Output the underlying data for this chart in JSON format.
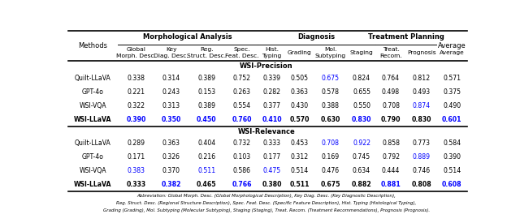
{
  "sub_headers": [
    "Global\nMorph. Desc.",
    "Key\nDiag. Desc.",
    "Reg.\nStruct. Desc.",
    "Spec.\nFeat. Desc.",
    "Hist.\nTyping",
    "Grading",
    "Mol.\nSubtyping",
    "Staging",
    "Treat.\nRecom.",
    "Prognosis",
    "Average"
  ],
  "section_precision": "WSI-Precision",
  "section_relevance": "WSI-Relevance",
  "precision_rows": [
    {
      "method": "Quilt-LLaVA",
      "bold": false,
      "values": [
        "0.338",
        "0.314",
        "0.389",
        "0.752",
        "0.339",
        "0.505",
        "0.675",
        "0.824",
        "0.764",
        "0.812",
        "0.571"
      ],
      "blue": [
        6
      ]
    },
    {
      "method": "GPT-4o",
      "bold": false,
      "values": [
        "0.221",
        "0.243",
        "0.153",
        "0.263",
        "0.282",
        "0.363",
        "0.578",
        "0.655",
        "0.498",
        "0.493",
        "0.375"
      ],
      "blue": []
    },
    {
      "method": "WSI-VQA",
      "bold": false,
      "values": [
        "0.322",
        "0.313",
        "0.389",
        "0.554",
        "0.377",
        "0.430",
        "0.388",
        "0.550",
        "0.708",
        "0.874",
        "0.490"
      ],
      "blue": [
        9
      ]
    },
    {
      "method": "WSI-LLaVA",
      "bold": true,
      "values": [
        "0.390",
        "0.350",
        "0.450",
        "0.760",
        "0.410",
        "0.570",
        "0.630",
        "0.830",
        "0.790",
        "0.830",
        "0.601"
      ],
      "blue": [
        0,
        1,
        2,
        3,
        4,
        7,
        10
      ]
    }
  ],
  "relevance_rows": [
    {
      "method": "Quilt-LLaVA",
      "bold": false,
      "values": [
        "0.289",
        "0.363",
        "0.404",
        "0.732",
        "0.333",
        "0.453",
        "0.708",
        "0.922",
        "0.858",
        "0.773",
        "0.584"
      ],
      "blue": [
        6,
        7
      ]
    },
    {
      "method": "GPT-4o",
      "bold": false,
      "values": [
        "0.171",
        "0.326",
        "0.216",
        "0.103",
        "0.177",
        "0.312",
        "0.169",
        "0.745",
        "0.792",
        "0.889",
        "0.390"
      ],
      "blue": [
        9
      ]
    },
    {
      "method": "WSI-VQA",
      "bold": false,
      "values": [
        "0.383",
        "0.370",
        "0.511",
        "0.586",
        "0.475",
        "0.514",
        "0.476",
        "0.634",
        "0.444",
        "0.746",
        "0.514"
      ],
      "blue": [
        0,
        2,
        4
      ]
    },
    {
      "method": "WSI-LLaVA",
      "bold": true,
      "values": [
        "0.333",
        "0.382",
        "0.465",
        "0.766",
        "0.380",
        "0.511",
        "0.675",
        "0.882",
        "0.881",
        "0.808",
        "0.608"
      ],
      "blue": [
        1,
        3,
        8,
        10
      ]
    }
  ],
  "footnote_lines": [
    "Abbreviation: Global Morph. Desc. (Global Morphological Description), Key Diag. Desc. (Key Diagnostic Description),",
    "Reg. Struct. Desc. (Regional Structure Description), Spec. Feat. Desc. (Specific Feature Description), Hist. Typing (Histological Typing),",
    "Grading (Grading), Mol. Subtyping (Molecular Subtyping), Staging (Staging), Treat. Recom. (Treatment Recommendations), Prognosis (Prognosis)."
  ],
  "blue_color": "#0000FF",
  "black_color": "#000000",
  "bg_color": "#FFFFFF"
}
